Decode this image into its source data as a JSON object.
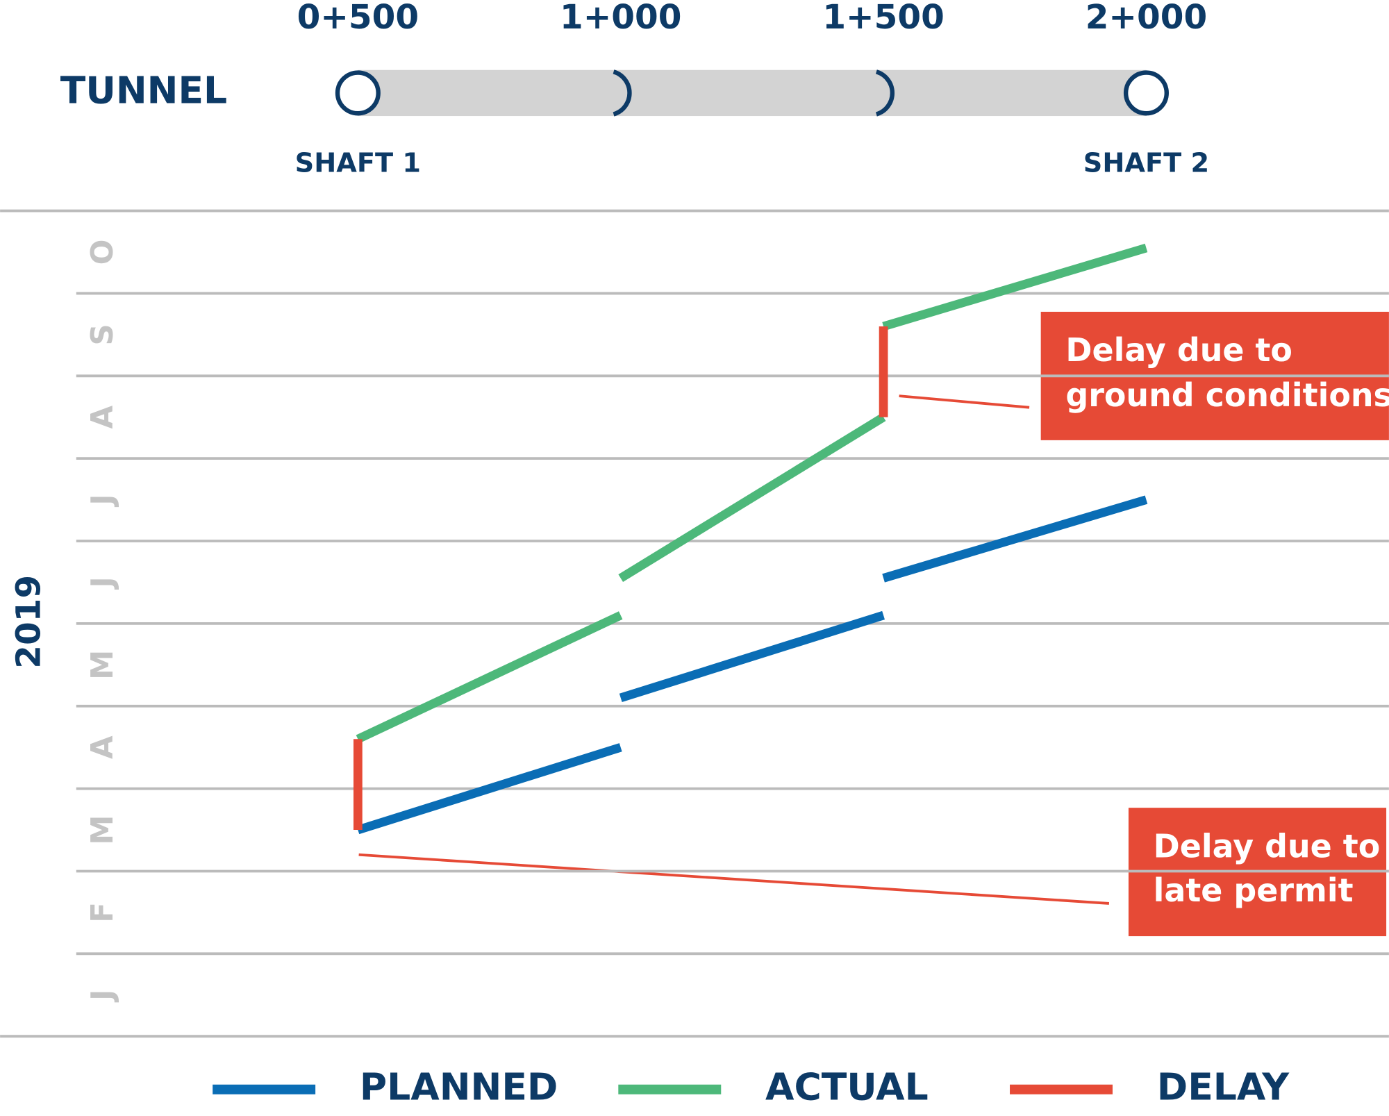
{
  "chart_data": {
    "type": "line",
    "header_label": "TUNNEL",
    "start_label": "SHAFT 1",
    "end_label": "SHAFT 2",
    "ylabel": "2019",
    "xlim": [
      500,
      2000
    ],
    "xticks": [
      {
        "value": 500,
        "label": "0+500"
      },
      {
        "value": 1000,
        "label": "1+000"
      },
      {
        "value": 1500,
        "label": "1+500"
      },
      {
        "value": 2000,
        "label": "2+000"
      }
    ],
    "ylim": [
      0,
      10
    ],
    "y_categories": [
      "J",
      "F",
      "M",
      "A",
      "M",
      "J",
      "J",
      "A",
      "S",
      "O"
    ],
    "series": [
      {
        "name": "PLANNED",
        "color": "#0a6db5",
        "x": [
          500,
          1000,
          null,
          1000,
          1500,
          null,
          1500,
          2000
        ],
        "values": [
          2.5,
          3.5,
          null,
          4.1,
          5.1,
          null,
          5.55,
          6.5
        ]
      },
      {
        "name": "ACTUAL",
        "color": "#4db87a",
        "x": [
          500,
          1000,
          null,
          1000,
          1500,
          null,
          1500,
          2000
        ],
        "values": [
          3.6,
          5.1,
          null,
          5.55,
          7.5,
          null,
          8.6,
          9.55
        ]
      },
      {
        "name": "DELAY",
        "color": "#e64a36",
        "x": [
          500,
          500,
          null,
          1500,
          1500
        ],
        "values": [
          2.5,
          3.6,
          null,
          7.5,
          8.6
        ]
      }
    ],
    "annotations": [
      {
        "lines": [
          "Delay due to",
          "ground conditions"
        ]
      },
      {
        "lines": [
          "Delay due to",
          "late permit"
        ]
      }
    ]
  }
}
